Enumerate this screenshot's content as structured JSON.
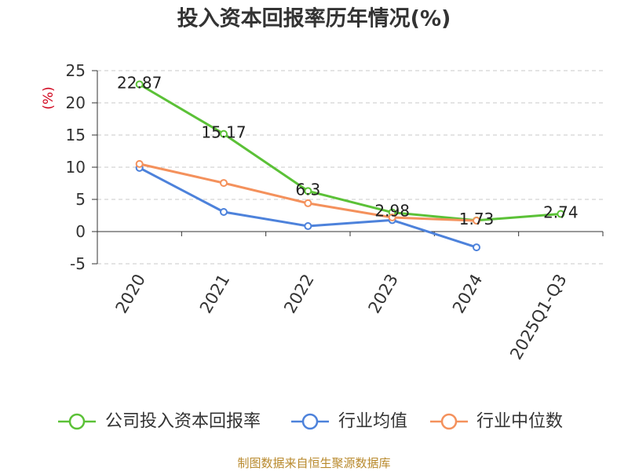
{
  "chart_data": {
    "type": "line",
    "title": "投入资本回报率历年情况(%)",
    "xlabel": "",
    "ylabel": "(%)",
    "categories": [
      "2020",
      "2021",
      "2022",
      "2023",
      "2024",
      "2025Q1-Q3"
    ],
    "ylim": [
      -5,
      25
    ],
    "yticks": [
      25,
      20,
      15,
      10,
      5,
      0,
      -5
    ],
    "grid": true,
    "legend_position": "bottom",
    "series": [
      {
        "name": "公司投入资本回报率",
        "color": "#5bc137",
        "values": [
          22.87,
          15.17,
          6.3,
          2.98,
          1.73,
          2.74
        ],
        "data_labels": true
      },
      {
        "name": "行业均值",
        "color": "#4d82db",
        "values": [
          9.9,
          3.05,
          0.85,
          1.78,
          -2.45,
          null
        ],
        "data_labels": false
      },
      {
        "name": "行业中位数",
        "color": "#f4915c",
        "values": [
          10.5,
          7.55,
          4.4,
          2.2,
          1.7,
          null
        ],
        "data_labels": false
      }
    ]
  },
  "footer": {
    "source": "制图数据来自恒生聚源数据库",
    "color": "#b8892c"
  },
  "colors": {
    "ylabel": "#d0021b"
  }
}
